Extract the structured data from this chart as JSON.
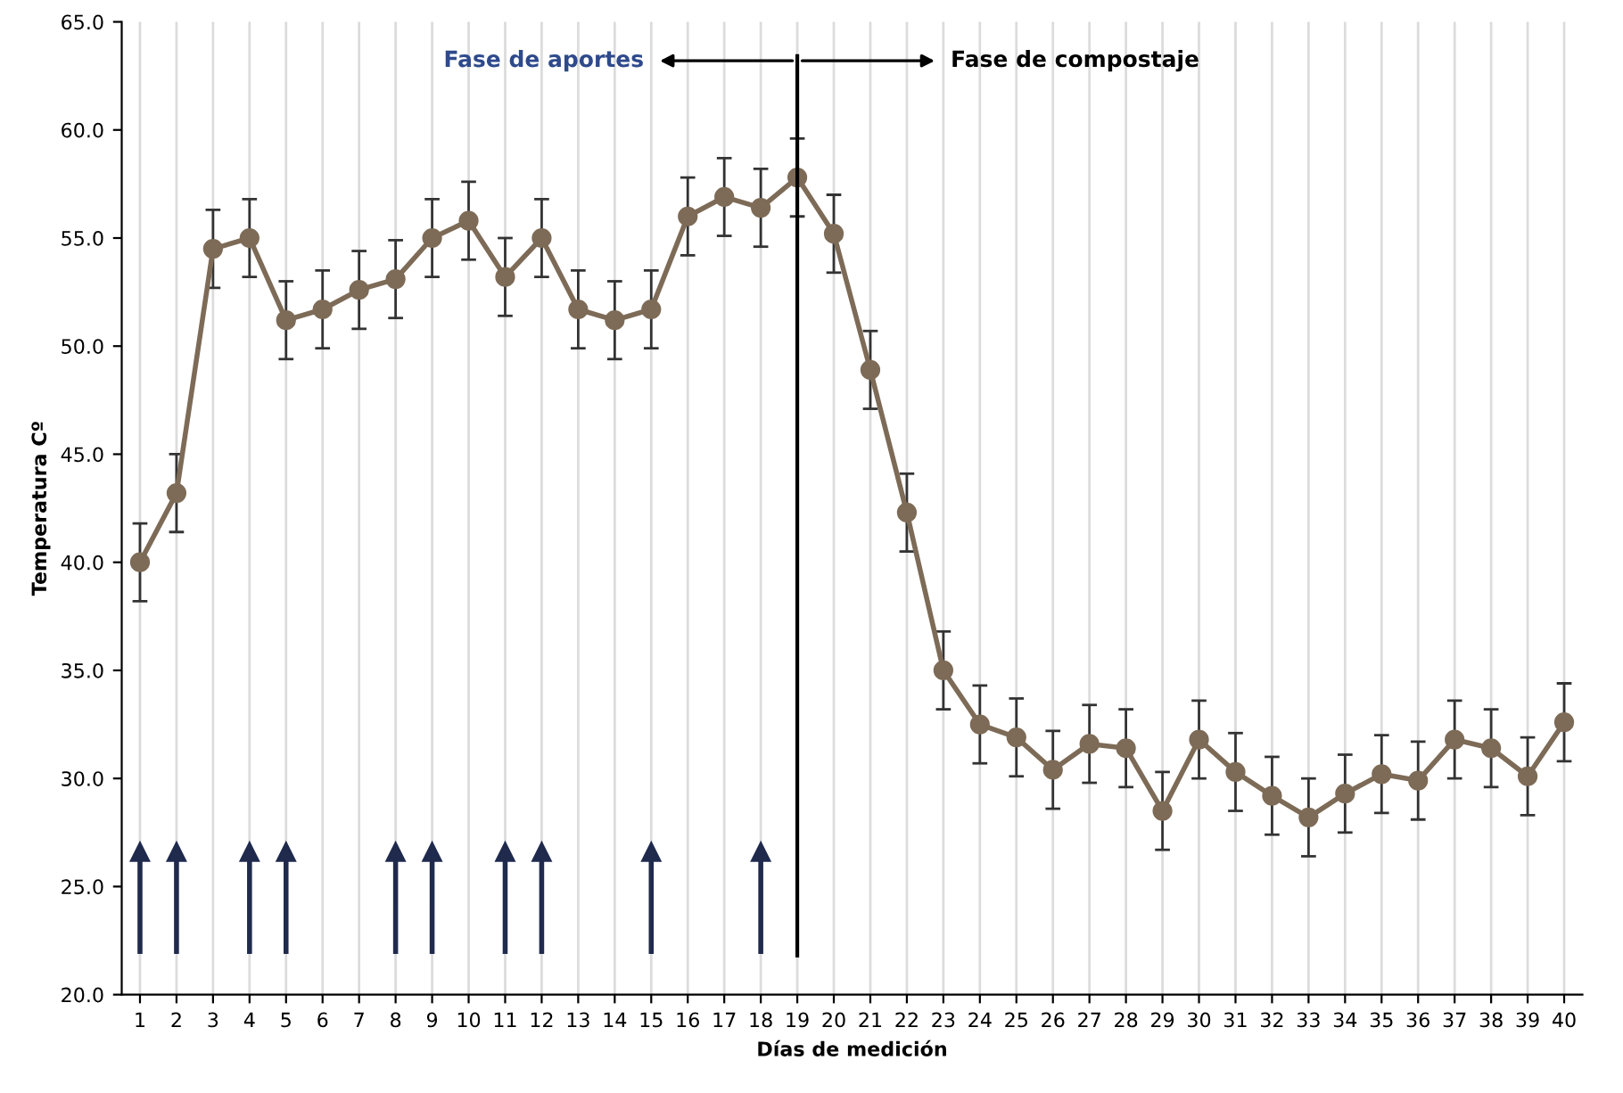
{
  "chart_data": {
    "type": "line",
    "xlabel": "Días de medición",
    "ylabel": "Temperatura Cº",
    "x": [
      1,
      2,
      3,
      4,
      5,
      6,
      7,
      8,
      9,
      10,
      11,
      12,
      13,
      14,
      15,
      16,
      17,
      18,
      19,
      20,
      21,
      22,
      23,
      24,
      25,
      26,
      27,
      28,
      29,
      30,
      31,
      32,
      33,
      34,
      35,
      36,
      37,
      38,
      39,
      40
    ],
    "series": [
      {
        "color": "#7d6b57",
        "values": [
          40.0,
          43.2,
          54.5,
          55.0,
          51.2,
          51.7,
          52.6,
          53.1,
          55.0,
          55.8,
          53.2,
          55.0,
          51.7,
          51.2,
          51.7,
          56.0,
          56.9,
          56.4,
          57.8,
          55.2,
          48.9,
          42.3,
          35.0,
          32.5,
          31.9,
          30.4,
          31.6,
          31.4,
          28.5,
          31.8,
          30.3,
          29.2,
          28.2,
          29.3,
          30.2,
          29.9,
          31.8,
          31.4,
          30.1,
          32.6
        ],
        "errors": [
          1.8,
          1.8,
          1.8,
          1.8,
          1.8,
          1.8,
          1.8,
          1.8,
          1.8,
          1.8,
          1.8,
          1.8,
          1.8,
          1.8,
          1.8,
          1.8,
          1.8,
          1.8,
          1.8,
          1.8,
          1.8,
          1.8,
          1.8,
          1.8,
          1.8,
          1.8,
          1.8,
          1.8,
          1.8,
          1.8,
          1.8,
          1.8,
          1.8,
          1.8,
          1.8,
          1.8,
          1.8,
          1.8,
          1.8,
          1.8
        ]
      }
    ],
    "marker": "circle",
    "line_style": "solid",
    "grid": "x",
    "xlim": [
      0.5,
      40.5
    ],
    "xticks": [
      1,
      2,
      3,
      4,
      5,
      6,
      7,
      8,
      9,
      10,
      11,
      12,
      13,
      14,
      15,
      16,
      17,
      18,
      19,
      20,
      21,
      22,
      23,
      24,
      25,
      26,
      27,
      28,
      29,
      30,
      31,
      32,
      33,
      34,
      35,
      36,
      37,
      38,
      39,
      40
    ],
    "ylim": [
      20,
      65
    ],
    "yticks": [
      {
        "value": 20,
        "label": "20.0"
      },
      {
        "value": 25,
        "label": "25.0"
      },
      {
        "value": 30,
        "label": "30.0"
      },
      {
        "value": 35,
        "label": "35.0"
      },
      {
        "value": 40,
        "label": "40.0"
      },
      {
        "value": 45,
        "label": "45.0"
      },
      {
        "value": 50,
        "label": "50.0"
      },
      {
        "value": 55,
        "label": "55.0"
      },
      {
        "value": 60,
        "label": "60.0"
      },
      {
        "value": 65,
        "label": "65.0"
      }
    ],
    "ref_lines": [
      {
        "axis": "x",
        "value": 19,
        "color": "#000000",
        "line_style": "solid"
      },
      {
        "axis": "x",
        "value": 1,
        "color": "#1f2a4d"
      },
      {
        "axis": "x",
        "value": 2,
        "color": "#1f2a4d"
      },
      {
        "axis": "x",
        "value": 4,
        "color": "#1f2a4d"
      },
      {
        "axis": "x",
        "value": 5,
        "color": "#1f2a4d"
      },
      {
        "axis": "x",
        "value": 8,
        "color": "#1f2a4d"
      },
      {
        "axis": "x",
        "value": 9,
        "color": "#1f2a4d"
      },
      {
        "axis": "x",
        "value": 11,
        "color": "#1f2a4d"
      },
      {
        "axis": "x",
        "value": 12,
        "color": "#1f2a4d"
      },
      {
        "axis": "x",
        "value": 15,
        "color": "#1f2a4d"
      },
      {
        "axis": "x",
        "value": 18,
        "color": "#1f2a4d"
      }
    ],
    "annotations": [
      "Fase de aportes",
      "Fase de compostaje"
    ]
  }
}
